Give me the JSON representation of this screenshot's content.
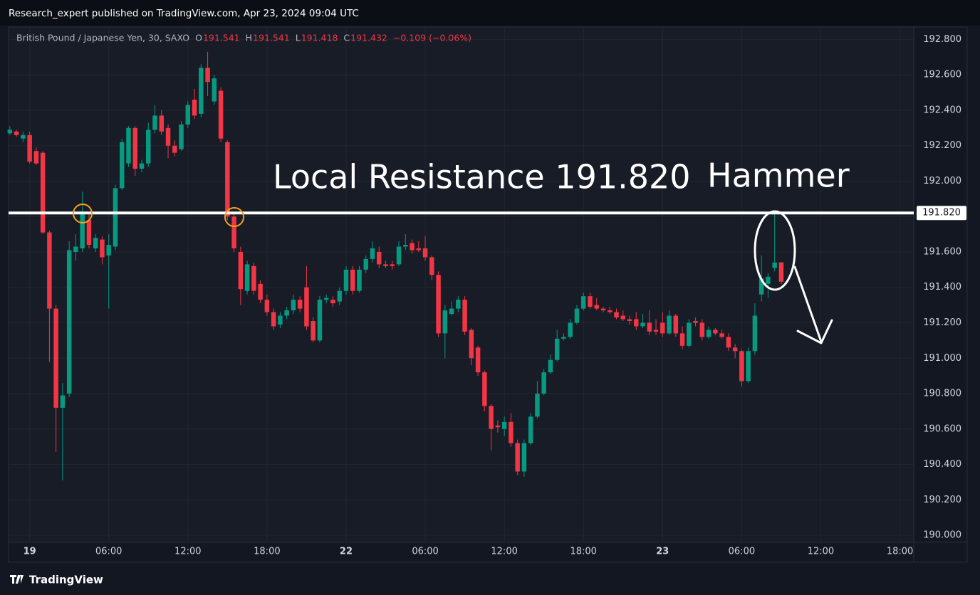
{
  "chart_data": {
    "type": "candlestick",
    "publisher_line": "Research_expert published on TradingView.com, Apr 23, 2024 09:04 UTC",
    "brand": "TradingView",
    "symbol": "British Pound / Japanese Yen, 30, SAXO",
    "ohlc_header": [
      {
        "label": "O",
        "value": "191.541"
      },
      {
        "label": "H",
        "value": "191.541"
      },
      {
        "label": "L",
        "value": "191.418"
      },
      {
        "label": "C",
        "value": "191.432"
      }
    ],
    "change": "−0.109 (−0.06%)",
    "annotations": [
      "Local Resistance 191.820",
      "Hammer"
    ],
    "level": {
      "value": 191.82,
      "label": "191.820",
      "color": "#ffffff"
    },
    "up_color": "#089981",
    "down_color": "#f23645",
    "open": [
      192.27,
      192.28,
      192.24,
      192.26,
      192.17,
      192.16,
      191.71,
      191.28,
      190.72,
      190.8,
      191.6,
      191.62,
      191.78,
      191.62,
      191.67,
      191.58,
      191.63,
      191.96,
      192.1,
      192.3,
      192.07,
      192.1,
      192.29,
      192.37,
      192.3,
      192.2,
      192.18,
      192.32,
      192.46,
      192.38,
      192.64,
      192.45,
      192.51,
      192.22,
      191.8,
      191.6,
      191.38,
      191.52,
      191.42,
      191.33,
      191.26,
      191.19,
      191.24,
      191.27,
      191.33,
      191.4,
      191.21,
      191.1,
      191.33,
      191.33,
      191.32,
      191.38,
      191.5,
      191.38,
      191.5,
      191.56,
      191.6,
      191.53,
      191.53,
      191.53,
      191.63,
      191.65,
      191.62,
      191.62,
      191.57,
      191.47,
      191.14,
      191.25,
      191.28,
      191.33,
      191.16,
      191.06,
      190.92,
      190.73,
      190.62,
      190.6,
      190.64,
      190.52,
      190.36,
      190.52,
      190.67,
      190.8,
      190.92,
      190.99,
      191.11,
      191.12,
      191.2,
      191.28,
      191.35,
      191.3,
      191.28,
      191.27,
      191.26,
      191.24,
      191.22,
      191.22,
      191.18,
      191.2,
      191.16,
      191.2,
      191.14,
      191.24,
      191.14,
      191.07,
      191.21,
      191.2,
      191.12,
      191.16,
      191.14,
      191.12,
      191.06,
      191.04,
      190.87,
      191.04,
      191.36,
      191.42,
      191.51,
      191.541
    ],
    "high": [
      192.31,
      192.29,
      192.28,
      192.28,
      192.19,
      192.17,
      191.72,
      191.3,
      190.86,
      191.66,
      191.7,
      191.94,
      191.82,
      191.7,
      191.69,
      191.7,
      191.98,
      192.24,
      192.31,
      192.31,
      192.12,
      192.33,
      192.43,
      192.4,
      192.32,
      192.23,
      192.34,
      192.45,
      192.52,
      192.66,
      192.73,
      192.6,
      192.53,
      192.23,
      191.82,
      191.63,
      191.55,
      191.54,
      191.44,
      191.36,
      191.28,
      191.26,
      191.29,
      191.36,
      191.35,
      191.52,
      191.23,
      191.35,
      191.36,
      191.35,
      191.4,
      191.52,
      191.52,
      191.52,
      191.58,
      191.66,
      191.63,
      191.55,
      191.55,
      191.66,
      191.7,
      191.67,
      191.66,
      191.69,
      191.58,
      191.49,
      191.3,
      191.32,
      191.35,
      191.35,
      191.17,
      191.07,
      190.93,
      190.74,
      190.65,
      190.67,
      190.69,
      190.54,
      190.54,
      190.69,
      190.87,
      190.94,
      191.02,
      191.16,
      191.14,
      191.22,
      191.3,
      191.37,
      191.37,
      191.34,
      191.29,
      191.29,
      191.28,
      191.27,
      191.24,
      191.26,
      191.25,
      191.27,
      191.22,
      191.26,
      191.27,
      191.25,
      191.18,
      191.22,
      191.23,
      191.22,
      191.18,
      191.17,
      191.16,
      191.14,
      191.08,
      191.05,
      191.06,
      191.31,
      191.58,
      191.48,
      191.82,
      191.541
    ],
    "low": [
      192.26,
      192.25,
      192.22,
      192.1,
      192.09,
      191.7,
      190.98,
      190.47,
      190.31,
      190.78,
      191.55,
      191.6,
      191.62,
      191.6,
      191.53,
      191.28,
      191.61,
      191.95,
      192.08,
      192.03,
      192.05,
      192.08,
      192.27,
      192.26,
      192.13,
      192.14,
      192.17,
      192.3,
      192.35,
      192.36,
      192.48,
      192.43,
      192.22,
      191.78,
      191.6,
      191.3,
      191.36,
      191.36,
      191.31,
      191.24,
      191.16,
      191.17,
      191.22,
      191.25,
      191.26,
      191.16,
      191.09,
      191.09,
      191.31,
      191.29,
      191.3,
      191.36,
      191.36,
      191.37,
      191.48,
      191.54,
      191.51,
      191.51,
      191.5,
      191.52,
      191.61,
      191.59,
      191.6,
      191.55,
      191.44,
      191.12,
      191.0,
      191.24,
      191.26,
      191.13,
      190.96,
      190.9,
      190.7,
      190.48,
      190.58,
      190.56,
      190.5,
      190.34,
      190.33,
      190.51,
      190.66,
      190.79,
      190.91,
      190.98,
      191.1,
      191.11,
      191.19,
      191.27,
      191.28,
      191.27,
      191.26,
      191.25,
      191.22,
      191.21,
      191.19,
      191.16,
      191.17,
      191.13,
      191.13,
      191.12,
      191.13,
      191.12,
      191.05,
      191.06,
      191.18,
      191.1,
      191.11,
      191.13,
      191.11,
      191.04,
      191.0,
      190.84,
      190.86,
      191.02,
      191.32,
      191.34,
      191.49,
      191.418
    ],
    "close": [
      192.29,
      192.26,
      192.26,
      192.11,
      192.1,
      191.71,
      191.28,
      190.72,
      190.79,
      191.61,
      191.63,
      191.82,
      191.64,
      191.68,
      191.57,
      191.64,
      191.96,
      192.22,
      192.3,
      192.07,
      192.1,
      192.29,
      192.37,
      192.28,
      192.2,
      192.16,
      192.32,
      192.43,
      192.37,
      192.64,
      192.56,
      192.58,
      192.24,
      191.8,
      191.62,
      191.39,
      191.53,
      191.38,
      191.33,
      191.26,
      191.18,
      191.24,
      191.27,
      191.33,
      191.28,
      191.18,
      191.1,
      191.33,
      191.34,
      191.31,
      191.38,
      191.5,
      191.38,
      191.5,
      191.56,
      191.62,
      191.53,
      191.52,
      191.52,
      191.63,
      191.64,
      191.61,
      191.61,
      191.57,
      191.47,
      191.14,
      191.27,
      191.28,
      191.33,
      191.15,
      191.0,
      190.92,
      190.73,
      190.6,
      190.61,
      190.64,
      190.52,
      190.36,
      190.52,
      190.67,
      190.8,
      190.92,
      190.99,
      191.11,
      191.12,
      191.2,
      191.28,
      191.35,
      191.29,
      191.28,
      191.27,
      191.26,
      191.23,
      191.22,
      191.21,
      191.18,
      191.2,
      191.15,
      191.15,
      191.14,
      191.24,
      191.14,
      191.07,
      191.2,
      191.2,
      191.12,
      191.16,
      191.14,
      191.12,
      191.06,
      191.04,
      190.87,
      191.04,
      191.24,
      191.45,
      191.46,
      191.54,
      191.432
    ],
    "xlim": [
      -0.2,
      137.1
    ],
    "ylim": [
      189.96,
      192.87
    ],
    "yticks": [
      {
        "value": 190.0,
        "label": "190.000"
      },
      {
        "value": 190.2,
        "label": "190.200"
      },
      {
        "value": 190.4,
        "label": "190.400"
      },
      {
        "value": 190.6,
        "label": "190.600"
      },
      {
        "value": 190.8,
        "label": "190.800"
      },
      {
        "value": 191.0,
        "label": "191.000"
      },
      {
        "value": 191.2,
        "label": "191.200"
      },
      {
        "value": 191.4,
        "label": "191.400"
      },
      {
        "value": 191.6,
        "label": "191.600"
      },
      {
        "value": 191.8,
        "label": "191.800"
      },
      {
        "value": 192.0,
        "label": "192.000"
      },
      {
        "value": 192.2,
        "label": "192.200"
      },
      {
        "value": 192.4,
        "label": "192.400"
      },
      {
        "value": 192.6,
        "label": "192.600"
      },
      {
        "value": 192.8,
        "label": "192.800"
      }
    ],
    "xticks": [
      {
        "value": 3,
        "label": "19"
      },
      {
        "value": 15,
        "label": "06:00"
      },
      {
        "value": 27,
        "label": "12:00"
      },
      {
        "value": 39,
        "label": "18:00"
      },
      {
        "value": 51,
        "label": "22"
      },
      {
        "value": 63,
        "label": "06:00"
      },
      {
        "value": 75,
        "label": "12:00"
      },
      {
        "value": 87,
        "label": "18:00"
      },
      {
        "value": 99,
        "label": "23"
      },
      {
        "value": 111,
        "label": "06:00"
      },
      {
        "value": 123,
        "label": "12:00"
      },
      {
        "value": 135,
        "label": "18:00"
      }
    ],
    "grid": true
  }
}
